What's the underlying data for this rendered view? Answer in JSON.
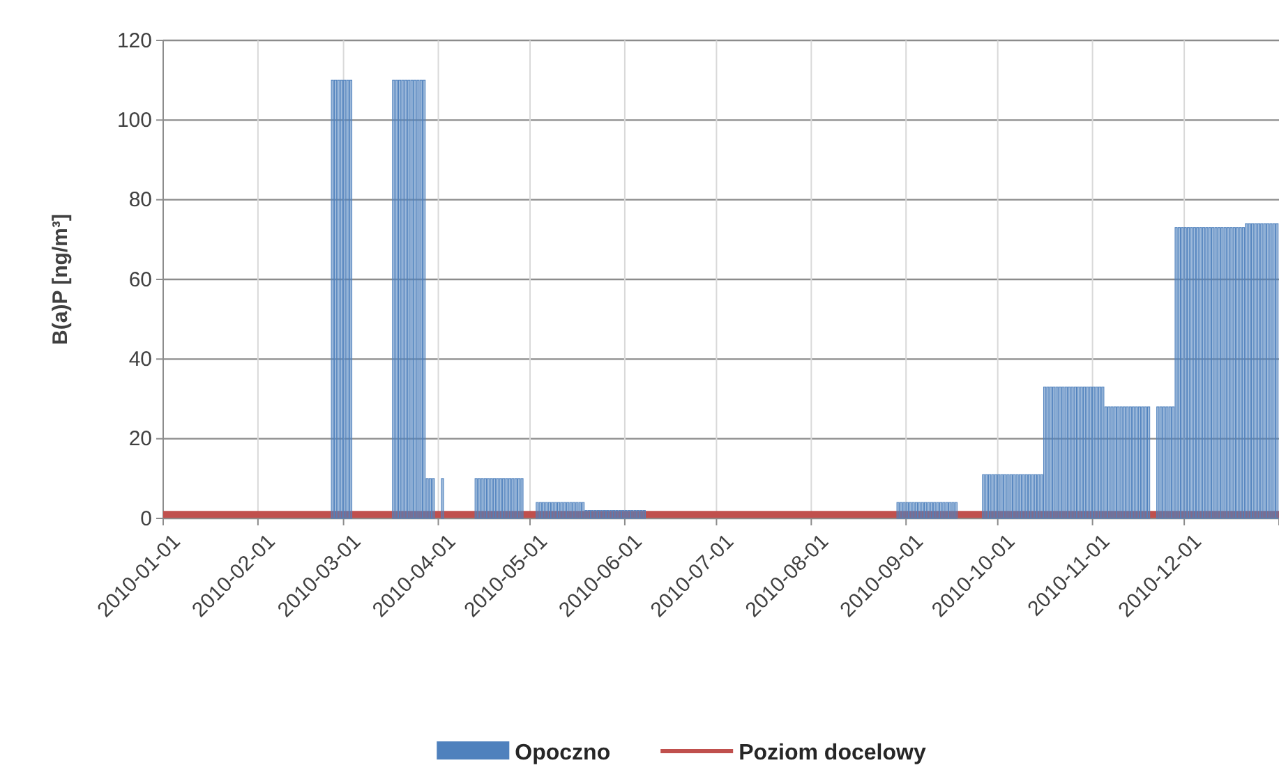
{
  "chart_data": {
    "type": "bar",
    "ylabel": "B(a)P [ng/m³]",
    "xlim": [
      "2010-01-01",
      "2011-01-01"
    ],
    "xticks": [
      {
        "value": "2010-01-01",
        "label": "2010-01-01"
      },
      {
        "value": "2010-02-01",
        "label": "2010-02-01"
      },
      {
        "value": "2010-03-01",
        "label": "2010-03-01"
      },
      {
        "value": "2010-04-01",
        "label": "2010-04-01"
      },
      {
        "value": "2010-05-01",
        "label": "2010-05-01"
      },
      {
        "value": "2010-06-01",
        "label": "2010-06-01"
      },
      {
        "value": "2010-07-01",
        "label": "2010-07-01"
      },
      {
        "value": "2010-08-01",
        "label": "2010-08-01"
      },
      {
        "value": "2010-09-01",
        "label": "2010-09-01"
      },
      {
        "value": "2010-10-01",
        "label": "2010-10-01"
      },
      {
        "value": "2010-11-01",
        "label": "2010-11-01"
      },
      {
        "value": "2010-12-01",
        "label": "2010-12-01"
      }
    ],
    "ylim": [
      0,
      120
    ],
    "yticks": [
      0,
      20,
      40,
      60,
      80,
      100,
      120
    ],
    "grid": true,
    "legend": "bottom",
    "series": [
      {
        "name": "Opoczno",
        "color": "#4f81bd",
        "x": [
          "2010-02-25",
          "2010-02-26",
          "2010-02-27",
          "2010-02-28",
          "2010-03-01",
          "2010-03-02",
          "2010-03-03",
          "2010-03-17",
          "2010-03-18",
          "2010-03-19",
          "2010-03-20",
          "2010-03-21",
          "2010-03-22",
          "2010-03-23",
          "2010-03-24",
          "2010-03-25",
          "2010-03-26",
          "2010-03-27",
          "2010-03-28",
          "2010-03-29",
          "2010-03-30",
          "2010-04-02",
          "2010-04-13",
          "2010-04-14",
          "2010-04-15",
          "2010-04-16",
          "2010-04-17",
          "2010-04-18",
          "2010-04-19",
          "2010-04-20",
          "2010-04-21",
          "2010-04-22",
          "2010-04-23",
          "2010-04-24",
          "2010-04-25",
          "2010-04-26",
          "2010-04-27",
          "2010-04-28",
          "2010-05-03",
          "2010-05-04",
          "2010-05-05",
          "2010-05-06",
          "2010-05-07",
          "2010-05-08",
          "2010-05-09",
          "2010-05-10",
          "2010-05-11",
          "2010-05-12",
          "2010-05-13",
          "2010-05-14",
          "2010-05-15",
          "2010-05-16",
          "2010-05-17",
          "2010-05-18",
          "2010-05-19",
          "2010-05-20",
          "2010-05-21",
          "2010-05-22",
          "2010-05-23",
          "2010-05-24",
          "2010-05-25",
          "2010-05-26",
          "2010-05-27",
          "2010-05-28",
          "2010-05-29",
          "2010-05-30",
          "2010-05-31",
          "2010-06-01",
          "2010-06-02",
          "2010-06-03",
          "2010-06-04",
          "2010-06-05",
          "2010-06-06",
          "2010-06-07",
          "2010-08-29",
          "2010-08-30",
          "2010-08-31",
          "2010-09-01",
          "2010-09-02",
          "2010-09-03",
          "2010-09-04",
          "2010-09-05",
          "2010-09-06",
          "2010-09-07",
          "2010-09-08",
          "2010-09-09",
          "2010-09-10",
          "2010-09-11",
          "2010-09-12",
          "2010-09-13",
          "2010-09-14",
          "2010-09-15",
          "2010-09-16",
          "2010-09-17",
          "2010-09-26",
          "2010-09-27",
          "2010-09-28",
          "2010-09-29",
          "2010-09-30",
          "2010-10-01",
          "2010-10-02",
          "2010-10-03",
          "2010-10-04",
          "2010-10-05",
          "2010-10-06",
          "2010-10-07",
          "2010-10-08",
          "2010-10-09",
          "2010-10-10",
          "2010-10-11",
          "2010-10-12",
          "2010-10-13",
          "2010-10-14",
          "2010-10-15",
          "2010-10-16",
          "2010-10-17",
          "2010-10-18",
          "2010-10-19",
          "2010-10-20",
          "2010-10-21",
          "2010-10-22",
          "2010-10-23",
          "2010-10-24",
          "2010-10-25",
          "2010-10-26",
          "2010-10-27",
          "2010-10-28",
          "2010-10-29",
          "2010-10-30",
          "2010-10-31",
          "2010-11-01",
          "2010-11-02",
          "2010-11-03",
          "2010-11-04",
          "2010-11-05",
          "2010-11-06",
          "2010-11-07",
          "2010-11-08",
          "2010-11-09",
          "2010-11-10",
          "2010-11-11",
          "2010-11-12",
          "2010-11-13",
          "2010-11-14",
          "2010-11-15",
          "2010-11-16",
          "2010-11-17",
          "2010-11-18",
          "2010-11-19",
          "2010-11-22",
          "2010-11-23",
          "2010-11-24",
          "2010-11-25",
          "2010-11-26",
          "2010-11-27",
          "2010-11-28",
          "2010-11-29",
          "2010-11-30",
          "2010-12-01",
          "2010-12-02",
          "2010-12-03",
          "2010-12-04",
          "2010-12-05",
          "2010-12-06",
          "2010-12-07",
          "2010-12-08",
          "2010-12-09",
          "2010-12-10",
          "2010-12-11",
          "2010-12-12",
          "2010-12-13",
          "2010-12-14",
          "2010-12-15",
          "2010-12-16",
          "2010-12-17",
          "2010-12-18",
          "2010-12-19",
          "2010-12-20",
          "2010-12-21",
          "2010-12-22",
          "2010-12-23",
          "2010-12-24",
          "2010-12-25",
          "2010-12-26",
          "2010-12-27",
          "2010-12-28",
          "2010-12-29",
          "2010-12-30",
          "2010-12-31"
        ],
        "values": [
          110,
          110,
          110,
          110,
          110,
          110,
          110,
          110,
          110,
          110,
          110,
          110,
          110,
          110,
          110,
          110,
          110,
          110,
          10,
          10,
          10,
          10,
          10,
          10,
          10,
          10,
          10,
          10,
          10,
          10,
          10,
          10,
          10,
          10,
          10,
          10,
          10,
          10,
          4,
          4,
          4,
          4,
          4,
          4,
          4,
          4,
          4,
          4,
          4,
          4,
          4,
          4,
          4,
          4,
          2,
          2,
          2,
          2,
          2,
          2,
          2,
          2,
          2,
          2,
          2,
          2,
          2,
          2,
          2,
          2,
          2,
          2,
          2,
          2,
          4,
          4,
          4,
          4,
          4,
          4,
          4,
          4,
          4,
          4,
          4,
          4,
          4,
          4,
          4,
          4,
          4,
          4,
          4,
          4,
          11,
          11,
          11,
          11,
          11,
          11,
          11,
          11,
          11,
          11,
          11,
          11,
          11,
          11,
          11,
          11,
          11,
          11,
          11,
          11,
          33,
          33,
          33,
          33,
          33,
          33,
          33,
          33,
          33,
          33,
          33,
          33,
          33,
          33,
          33,
          33,
          33,
          33,
          33,
          33,
          28,
          28,
          28,
          28,
          28,
          28,
          28,
          28,
          28,
          28,
          28,
          28,
          28,
          28,
          28,
          28,
          28,
          28,
          28,
          28,
          28,
          73,
          73,
          73,
          73,
          73,
          73,
          73,
          73,
          73,
          73,
          73,
          73,
          73,
          73,
          73,
          73,
          73,
          73,
          73,
          73,
          73,
          73,
          73,
          74,
          74,
          74,
          74,
          74,
          74,
          74,
          74,
          74,
          74,
          74
        ]
      },
      {
        "name": "Poziom docelowy",
        "type": "line",
        "color": "#c0504d",
        "x": [
          "2010-01-01",
          "2011-01-01"
        ],
        "values": [
          1,
          1
        ]
      }
    ]
  }
}
